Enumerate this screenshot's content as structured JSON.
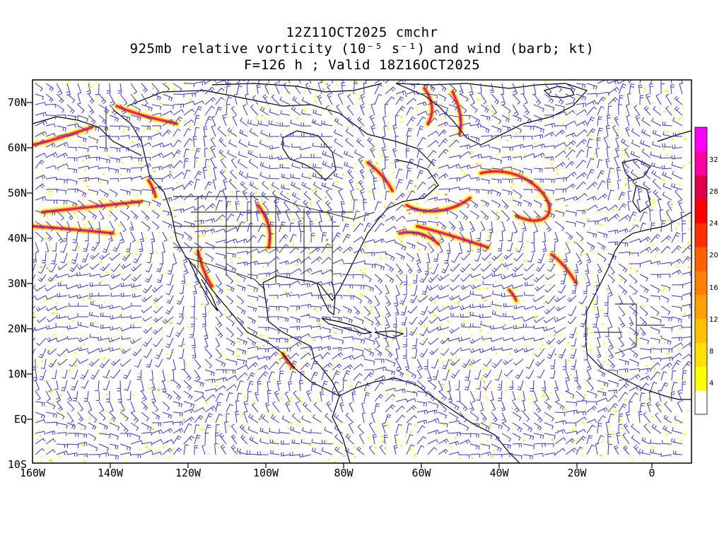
{
  "title": {
    "line1": "12Z11OCT2025 cmchr",
    "line2": "925mb relative vorticity (10⁻⁵ s⁻¹) and wind (barb; kt)",
    "line3": "F=126 h ; Valid 18Z16OCT2025"
  },
  "lat_labels": [
    "70N",
    "60N",
    "50N",
    "40N",
    "30N",
    "20N",
    "10N",
    "EQ",
    "10S"
  ],
  "lon_labels": [
    "160W",
    "140W",
    "120W",
    "100W",
    "80W",
    "60W",
    "40W",
    "20W",
    "0"
  ],
  "colorbar": {
    "labels": [
      "4",
      "8",
      "12",
      "16",
      "20",
      "24",
      "28",
      "32"
    ],
    "colors": [
      "#ffffff",
      "#ffff00",
      "#ffe000",
      "#ffc000",
      "#ffa000",
      "#ff8000",
      "#ff6000",
      "#ff3000",
      "#ff0000",
      "#e0004a",
      "#ff00a0",
      "#ff00ff"
    ]
  },
  "colors": {
    "barbs": "#3333ff",
    "coast": "#000000",
    "vort_low": "#ffff00",
    "vort_mid": "#ff8c00",
    "vort_high": "#ff00ff"
  }
}
